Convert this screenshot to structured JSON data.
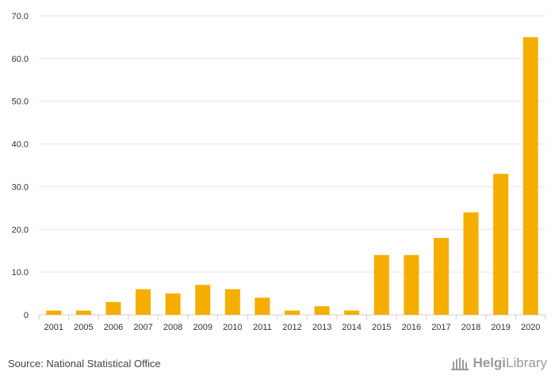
{
  "chart_data": {
    "type": "bar",
    "title": "",
    "xlabel": "",
    "ylabel": "",
    "categories": [
      "2001",
      "2005",
      "2006",
      "2007",
      "2008",
      "2009",
      "2010",
      "2011",
      "2012",
      "2013",
      "2014",
      "2015",
      "2016",
      "2017",
      "2018",
      "2019",
      "2020"
    ],
    "values": [
      1,
      1,
      3,
      6,
      5,
      7,
      6,
      4,
      1,
      2,
      1,
      14,
      14,
      18,
      24,
      33,
      65
    ],
    "ylim": [
      0,
      70
    ],
    "yticks": [
      "0",
      "10.0",
      "20.0",
      "30.0",
      "40.0",
      "50.0",
      "60.0",
      "70.0"
    ],
    "grid": true,
    "bar_color": "#f5ae00"
  },
  "footer": {
    "source": "Source: National Statistical Office",
    "logo_bold": "Helgi",
    "logo_light": "Library"
  }
}
